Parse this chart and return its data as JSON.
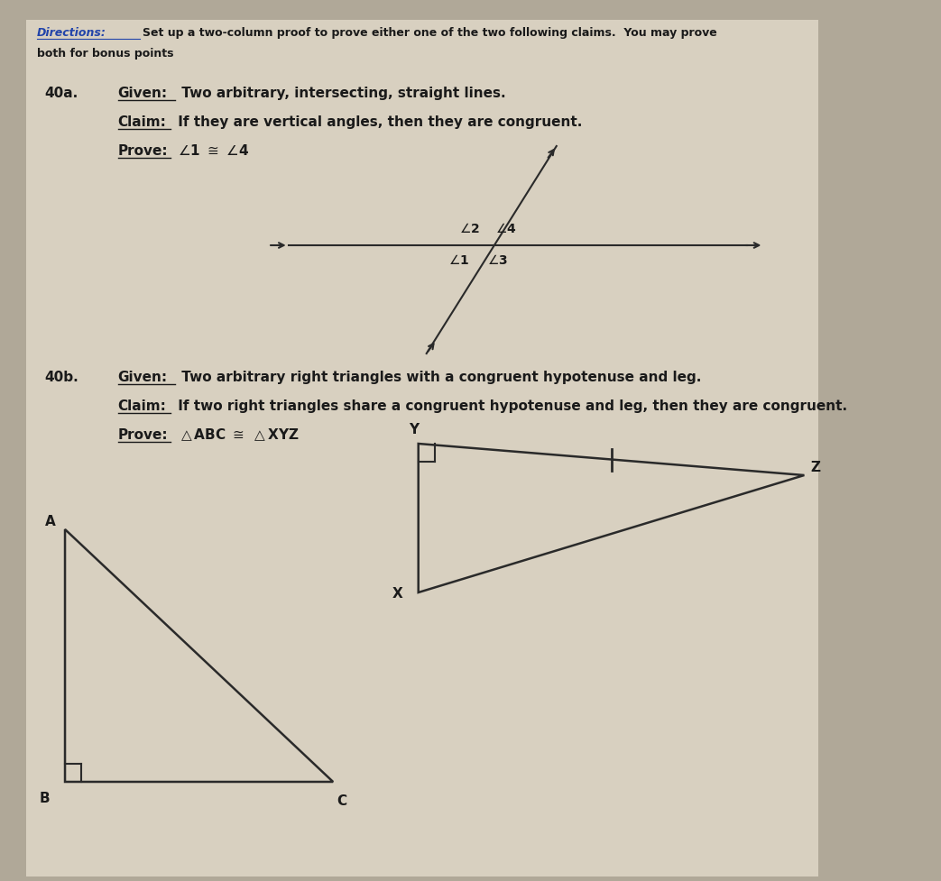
{
  "bg_color": "#b0a898",
  "paper_color": "#d8d0c0",
  "directions_color": "#2244aa",
  "text_color": "#1a1a1a",
  "line_color": "#2a2a2a",
  "dir_line1": "Directions: Set up a two-column proof to prove either one of the two following claims.  You may prove",
  "dir_line2": "both for bonus points",
  "label_40a": "40a.",
  "given_40a": "Given: Two arbitrary, intersecting, straight lines.",
  "claim_40a": "Claim: If they are vertical angles, then they are congruent.",
  "prove_40a_word": "Prove:",
  "label_40b": "40b.",
  "given_40b": "Given: Two arbitrary right triangles with a congruent hypotenuse and leg.",
  "claim_40b": "Claim: If two right triangles share a congruent hypotenuse and leg, then they are congruent.",
  "prove_40b_word": "Prove:"
}
